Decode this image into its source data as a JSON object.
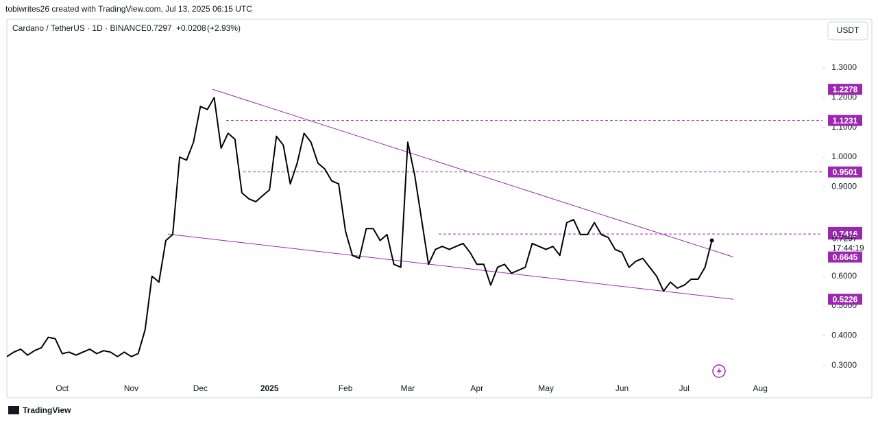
{
  "header": {
    "credit": "tobiwrites26 created with TradingView.com, Jul 13, 2025 06:15 UTC",
    "symbol": "Cardano / TetherUS · 1D · BINANCE",
    "price": 0.7297,
    "change": "+0.0208",
    "change_pct": "(+2.93%)",
    "currency": "USDT",
    "countdown": "17:44:19",
    "brand": "TradingView"
  },
  "chart_data": {
    "type": "line",
    "color": "#000000",
    "categories": [
      null,
      null,
      null,
      null,
      null,
      null,
      null,
      null,
      "Oct",
      null,
      null,
      null,
      null,
      null,
      null,
      null,
      null,
      null,
      "Nov",
      null,
      null,
      null,
      null,
      null,
      null,
      null,
      null,
      null,
      "Dec",
      null,
      null,
      null,
      null,
      null,
      null,
      null,
      null,
      null,
      "2025",
      null,
      null,
      null,
      null,
      null,
      null,
      null,
      null,
      null,
      null,
      "Feb",
      null,
      null,
      null,
      null,
      null,
      null,
      null,
      null,
      "Mar",
      null,
      null,
      null,
      null,
      null,
      null,
      null,
      null,
      null,
      "Apr",
      null,
      null,
      null,
      null,
      null,
      null,
      null,
      null,
      null,
      "May",
      null,
      null,
      null,
      null,
      null,
      null,
      null,
      null,
      null,
      null,
      "Jun",
      null,
      null,
      null,
      null,
      null,
      null,
      null,
      null,
      "Jul",
      null,
      null,
      null,
      null,
      null,
      null,
      null,
      null,
      null,
      null,
      "Aug",
      null,
      null,
      null,
      null,
      null,
      null,
      null,
      null
    ],
    "values": [
      0.33,
      0.345,
      0.355,
      0.335,
      0.35,
      0.36,
      0.395,
      0.39,
      0.34,
      0.345,
      0.335,
      0.345,
      0.355,
      0.34,
      0.35,
      0.345,
      0.33,
      0.345,
      0.33,
      0.34,
      0.42,
      0.6,
      0.58,
      0.72,
      0.74,
      1.0,
      0.99,
      1.05,
      1.17,
      1.16,
      1.2,
      1.03,
      1.08,
      1.06,
      0.88,
      0.86,
      0.85,
      0.87,
      0.89,
      1.07,
      1.04,
      0.91,
      0.98,
      1.08,
      1.05,
      0.98,
      0.96,
      0.92,
      0.91,
      0.75,
      0.67,
      0.66,
      0.76,
      0.76,
      0.72,
      0.74,
      0.64,
      0.63,
      1.05,
      0.94,
      0.79,
      0.64,
      0.69,
      0.7,
      0.69,
      0.7,
      0.71,
      0.68,
      0.64,
      0.64,
      0.57,
      0.63,
      0.64,
      0.61,
      0.62,
      0.63,
      0.71,
      0.7,
      0.69,
      0.7,
      0.67,
      0.78,
      0.79,
      0.74,
      0.74,
      0.78,
      0.74,
      0.73,
      0.69,
      0.68,
      0.63,
      0.65,
      0.66,
      0.63,
      0.6,
      0.55,
      0.58,
      0.56,
      0.57,
      0.59,
      0.59,
      0.63,
      0.72,
      null,
      null,
      null,
      null,
      null,
      null,
      null,
      null,
      null,
      null,
      null,
      null,
      null,
      null,
      null
    ],
    "ylim": [
      0.249,
      1.4585
    ],
    "yticks": [
      {
        "value": 0.3,
        "label": "0.3000"
      },
      {
        "value": 0.4,
        "label": "0.4000"
      },
      {
        "value": 0.5,
        "label": "0.5000"
      },
      {
        "value": 0.6,
        "label": "0.6000"
      },
      {
        "value": 0.9,
        "label": "0.9000"
      },
      {
        "value": 1.0,
        "label": "1.0000"
      },
      {
        "value": 1.1,
        "label": "1.1000"
      },
      {
        "value": 1.2,
        "label": "1.2000"
      },
      {
        "value": 1.3,
        "label": "1.3000"
      }
    ],
    "level_color": "#9c27b0",
    "levels": [
      {
        "value": 1.2278,
        "dashed": false
      },
      {
        "value": 1.1231,
        "dashed": true
      },
      {
        "value": 0.9501,
        "dashed": true
      },
      {
        "value": 0.7468,
        "dashed": false
      },
      {
        "value": 0.7416,
        "dashed": true
      },
      {
        "value": 0.6645,
        "dashed": false
      },
      {
        "value": 0.5226,
        "dashed": false
      }
    ]
  }
}
